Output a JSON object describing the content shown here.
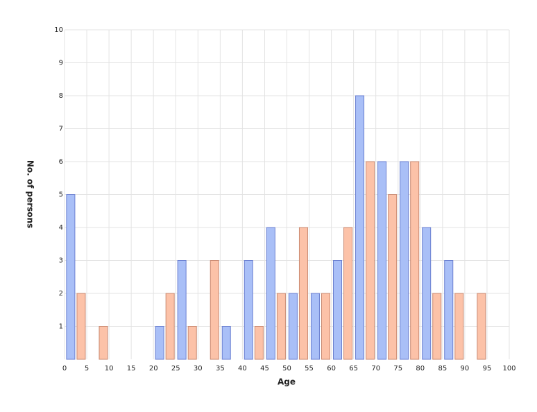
{
  "chart_data": {
    "type": "histogram",
    "x_label": "Age",
    "y_label": "No. of persons",
    "bins": [
      0,
      5,
      10,
      15,
      20,
      25,
      30,
      35,
      40,
      45,
      50,
      55,
      60,
      65,
      70,
      75,
      80,
      85,
      90,
      95,
      100
    ],
    "series": [
      {
        "color": "#a9bff7",
        "values": [
          5,
          0,
          0,
          0,
          1,
          3,
          0,
          1,
          3,
          4,
          2,
          2,
          3,
          8,
          6,
          6,
          4,
          3,
          0,
          0
        ]
      },
      {
        "color": "#fcc2a8",
        "values": [
          2,
          1,
          0,
          0,
          2,
          1,
          3,
          0,
          1,
          2,
          4,
          2,
          4,
          6,
          5,
          6,
          2,
          2,
          2,
          0
        ]
      }
    ],
    "xlim": [
      0,
      100
    ],
    "xticks": [
      0,
      5,
      10,
      15,
      20,
      25,
      30,
      35,
      40,
      45,
      50,
      55,
      60,
      65,
      70,
      75,
      80,
      85,
      90,
      95,
      100
    ],
    "ylim": [
      0,
      10
    ],
    "yticks": [
      1,
      2,
      3,
      4,
      5,
      6,
      7,
      8,
      9,
      10
    ],
    "grid": true
  }
}
